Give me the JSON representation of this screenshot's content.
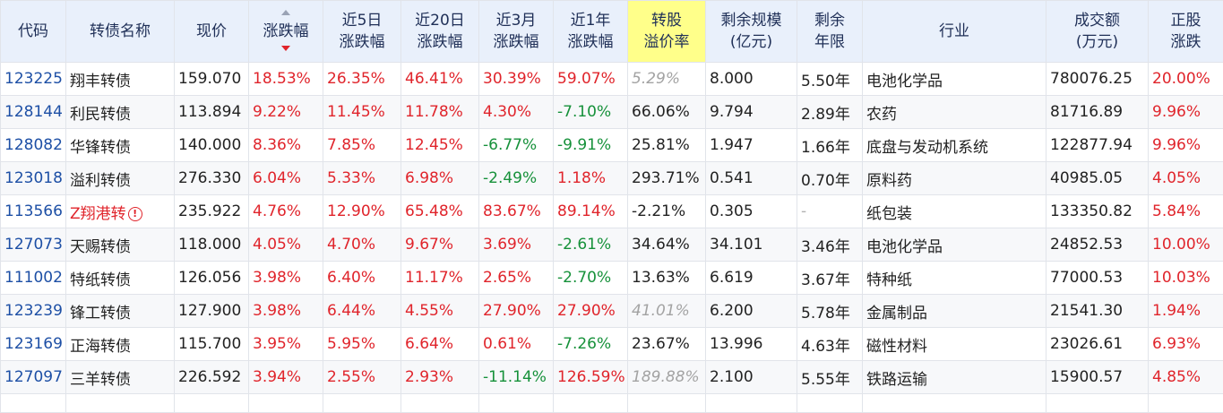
{
  "headers": [
    {
      "key": "code",
      "lines": [
        "代码"
      ]
    },
    {
      "key": "name",
      "lines": [
        "转债名称"
      ]
    },
    {
      "key": "price",
      "lines": [
        "现价"
      ]
    },
    {
      "key": "change",
      "lines": [
        "涨跌幅"
      ]
    },
    {
      "key": "chg5d",
      "lines": [
        "近5日",
        "涨跌幅"
      ]
    },
    {
      "key": "chg20d",
      "lines": [
        "近20日",
        "涨跌幅"
      ]
    },
    {
      "key": "chg3m",
      "lines": [
        "近3月",
        "涨跌幅"
      ]
    },
    {
      "key": "chg1y",
      "lines": [
        "近1年",
        "涨跌幅"
      ]
    },
    {
      "key": "premium",
      "lines": [
        "转股",
        "溢价率"
      ]
    },
    {
      "key": "scale",
      "lines": [
        "剩余规模",
        "(亿元)"
      ]
    },
    {
      "key": "years",
      "lines": [
        "剩余",
        "年限"
      ]
    },
    {
      "key": "industry",
      "lines": [
        "行业"
      ]
    },
    {
      "key": "volume",
      "lines": [
        "成交额",
        "(万元)"
      ]
    },
    {
      "key": "stock_chg",
      "lines": [
        "正股",
        "涨跌"
      ]
    }
  ],
  "colors": {
    "red": "#e0242b",
    "green": "#16913a",
    "code": "#1d4fa5",
    "header_bg": "#e9f0fb",
    "highlight": "#ffff8a"
  },
  "rows": [
    {
      "code": "123225",
      "name": "翔丰转债",
      "price": "159.070",
      "change": "18.53%",
      "chg5d": "26.35%",
      "chg20d": "46.41%",
      "chg3m": "30.39%",
      "chg1y": "59.07%",
      "premium": "5.29%",
      "premium_style": "gray-italic",
      "scale": "8.000",
      "years": "5.50年",
      "industry": "电池化学品",
      "volume": "780076.25",
      "stock_chg": "20.00%"
    },
    {
      "code": "128144",
      "name": "利民转债",
      "price": "113.894",
      "change": "9.22%",
      "chg5d": "11.45%",
      "chg20d": "11.78%",
      "chg3m": "4.30%",
      "chg1y": "-7.10%",
      "premium": "66.06%",
      "premium_style": "",
      "scale": "9.794",
      "years": "2.89年",
      "industry": "农药",
      "volume": "81716.89",
      "stock_chg": "9.96%"
    },
    {
      "code": "128082",
      "name": "华锋转债",
      "price": "140.000",
      "change": "8.36%",
      "chg5d": "7.85%",
      "chg20d": "12.45%",
      "chg3m": "-6.77%",
      "chg1y": "-9.91%",
      "premium": "25.81%",
      "premium_style": "",
      "scale": "1.947",
      "years": "1.66年",
      "industry": "底盘与发动机系统",
      "volume": "122877.94",
      "stock_chg": "9.96%"
    },
    {
      "code": "123018",
      "name": "溢利转债",
      "price": "276.330",
      "change": "6.04%",
      "chg5d": "5.33%",
      "chg20d": "6.98%",
      "chg3m": "-2.49%",
      "chg1y": "1.18%",
      "premium": "293.71%",
      "premium_style": "",
      "scale": "0.541",
      "years": "0.70年",
      "industry": "原料药",
      "volume": "40985.05",
      "stock_chg": "4.05%"
    },
    {
      "code": "113566",
      "name": "Z翔港转",
      "name_warn": true,
      "price": "235.922",
      "change": "4.76%",
      "chg5d": "12.90%",
      "chg20d": "65.48%",
      "chg3m": "83.67%",
      "chg1y": "89.14%",
      "premium": "-2.21%",
      "premium_style": "",
      "scale": "0.305",
      "years": "-",
      "years_dim": true,
      "industry": "纸包装",
      "volume": "133350.82",
      "stock_chg": "5.84%"
    },
    {
      "code": "127073",
      "name": "天赐转债",
      "price": "118.000",
      "change": "4.05%",
      "chg5d": "4.70%",
      "chg20d": "9.67%",
      "chg3m": "3.69%",
      "chg1y": "-2.61%",
      "premium": "34.64%",
      "premium_style": "",
      "scale": "34.101",
      "years": "3.46年",
      "industry": "电池化学品",
      "volume": "24852.53",
      "stock_chg": "10.00%"
    },
    {
      "code": "111002",
      "name": "特纸转债",
      "price": "126.056",
      "change": "3.98%",
      "chg5d": "6.40%",
      "chg20d": "11.17%",
      "chg3m": "2.65%",
      "chg1y": "-2.70%",
      "premium": "13.63%",
      "premium_style": "",
      "scale": "6.619",
      "years": "3.67年",
      "industry": "特种纸",
      "volume": "77000.53",
      "stock_chg": "10.03%"
    },
    {
      "code": "123239",
      "name": "锋工转债",
      "price": "127.900",
      "change": "3.98%",
      "chg5d": "6.44%",
      "chg20d": "4.55%",
      "chg3m": "27.90%",
      "chg1y": "27.90%",
      "premium": "41.01%",
      "premium_style": "gray-italic",
      "scale": "6.200",
      "years": "5.78年",
      "industry": "金属制品",
      "volume": "21541.30",
      "stock_chg": "1.94%"
    },
    {
      "code": "123169",
      "name": "正海转债",
      "price": "115.700",
      "change": "3.95%",
      "chg5d": "5.95%",
      "chg20d": "6.64%",
      "chg3m": "0.61%",
      "chg1y": "-7.26%",
      "premium": "23.67%",
      "premium_style": "",
      "scale": "13.996",
      "years": "4.63年",
      "industry": "磁性材料",
      "volume": "23026.61",
      "stock_chg": "6.93%"
    },
    {
      "code": "127097",
      "name": "三羊转债",
      "price": "226.592",
      "change": "3.94%",
      "chg5d": "2.55%",
      "chg20d": "2.93%",
      "chg3m": "-11.14%",
      "chg1y": "126.59%",
      "premium": "189.88%",
      "premium_style": "gray-italic",
      "scale": "2.100",
      "years": "5.55年",
      "industry": "铁路运输",
      "volume": "15900.57",
      "stock_chg": "4.85%"
    }
  ]
}
